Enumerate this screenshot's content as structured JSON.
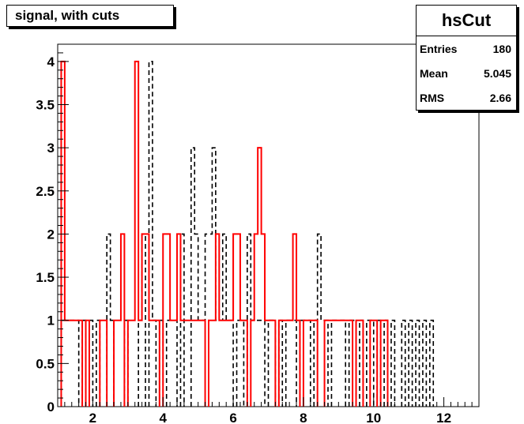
{
  "chart_data": {
    "type": "histogram",
    "title": "signal, with cuts",
    "xlim": [
      1,
      13
    ],
    "ylim": [
      0,
      4.2
    ],
    "x_ticks": [
      2,
      4,
      6,
      8,
      10,
      12
    ],
    "y_ticks": [
      0,
      0.5,
      1,
      1.5,
      2,
      2.5,
      3,
      3.5,
      4
    ],
    "x_tick_labels": [
      "2",
      "4",
      "6",
      "8",
      "10",
      "12"
    ],
    "y_tick_labels": [
      "0",
      "0.5",
      "1",
      "1.5",
      "2",
      "2.5",
      "3",
      "3.5",
      "4"
    ],
    "bin_width": 0.1,
    "series": [
      {
        "style": "solid",
        "color": "#ff0000",
        "bins": [
          [
            1.1,
            4
          ],
          [
            1.2,
            1
          ],
          [
            1.3,
            1
          ],
          [
            1.4,
            1
          ],
          [
            1.5,
            1
          ],
          [
            1.6,
            1
          ],
          [
            1.8,
            1
          ],
          [
            2.2,
            1
          ],
          [
            2.3,
            1
          ],
          [
            2.6,
            1
          ],
          [
            2.7,
            1
          ],
          [
            2.8,
            2
          ],
          [
            3.0,
            1
          ],
          [
            3.1,
            1
          ],
          [
            3.2,
            4
          ],
          [
            3.3,
            1
          ],
          [
            3.4,
            2
          ],
          [
            3.5,
            2
          ],
          [
            3.6,
            1
          ],
          [
            3.7,
            1
          ],
          [
            3.8,
            1
          ],
          [
            4.0,
            2
          ],
          [
            4.1,
            2
          ],
          [
            4.2,
            1
          ],
          [
            4.3,
            1
          ],
          [
            4.4,
            2
          ],
          [
            4.5,
            1
          ],
          [
            4.6,
            1
          ],
          [
            4.7,
            1
          ],
          [
            4.8,
            1
          ],
          [
            4.9,
            1
          ],
          [
            5.0,
            1
          ],
          [
            5.1,
            1
          ],
          [
            5.3,
            1
          ],
          [
            5.4,
            1
          ],
          [
            5.5,
            2
          ],
          [
            5.6,
            1
          ],
          [
            5.7,
            1
          ],
          [
            5.8,
            1
          ],
          [
            5.9,
            1
          ],
          [
            6.0,
            2
          ],
          [
            6.1,
            2
          ],
          [
            6.2,
            1
          ],
          [
            6.3,
            1
          ],
          [
            6.5,
            1
          ],
          [
            6.6,
            2
          ],
          [
            6.7,
            3
          ],
          [
            6.8,
            2
          ],
          [
            6.9,
            1
          ],
          [
            7.0,
            1
          ],
          [
            7.1,
            1
          ],
          [
            7.3,
            1
          ],
          [
            7.4,
            1
          ],
          [
            7.5,
            1
          ],
          [
            7.6,
            1
          ],
          [
            7.7,
            2
          ],
          [
            7.8,
            1
          ],
          [
            8.0,
            1
          ],
          [
            8.1,
            1
          ],
          [
            8.2,
            1
          ],
          [
            8.3,
            1
          ],
          [
            8.6,
            1
          ],
          [
            8.7,
            1
          ],
          [
            8.8,
            1
          ],
          [
            8.9,
            1
          ],
          [
            9.0,
            1
          ],
          [
            9.1,
            1
          ],
          [
            9.2,
            1
          ],
          [
            9.3,
            1
          ],
          [
            9.5,
            1
          ],
          [
            9.6,
            1
          ],
          [
            9.9,
            1
          ],
          [
            10.0,
            1
          ],
          [
            10.2,
            1
          ],
          [
            10.3,
            1
          ]
        ]
      },
      {
        "style": "dashed",
        "color": "#000000",
        "bins": [
          [
            1.1,
            1
          ],
          [
            1.2,
            1
          ],
          [
            1.3,
            1
          ],
          [
            1.4,
            1
          ],
          [
            1.5,
            1
          ],
          [
            1.7,
            1
          ],
          [
            1.9,
            1
          ],
          [
            2.1,
            1
          ],
          [
            2.4,
            2
          ],
          [
            2.5,
            1
          ],
          [
            2.9,
            1
          ],
          [
            3.3,
            1
          ],
          [
            3.4,
            2
          ],
          [
            3.6,
            4
          ],
          [
            3.7,
            1
          ],
          [
            3.9,
            1
          ],
          [
            4.1,
            1
          ],
          [
            4.2,
            1
          ],
          [
            4.3,
            1
          ],
          [
            4.5,
            2
          ],
          [
            4.8,
            3
          ],
          [
            4.9,
            2
          ],
          [
            5.0,
            1
          ],
          [
            5.1,
            1
          ],
          [
            5.2,
            2
          ],
          [
            5.3,
            2
          ],
          [
            5.4,
            3
          ],
          [
            5.5,
            1
          ],
          [
            5.6,
            1
          ],
          [
            5.7,
            2
          ],
          [
            5.8,
            1
          ],
          [
            5.9,
            1
          ],
          [
            6.1,
            1
          ],
          [
            6.2,
            1
          ],
          [
            6.4,
            2
          ],
          [
            6.5,
            1
          ],
          [
            6.6,
            1
          ],
          [
            6.7,
            1
          ],
          [
            6.8,
            1
          ],
          [
            7.0,
            1
          ],
          [
            7.1,
            1
          ],
          [
            7.3,
            1
          ],
          [
            7.5,
            1
          ],
          [
            7.6,
            1
          ],
          [
            7.7,
            1
          ],
          [
            7.9,
            1
          ],
          [
            8.0,
            1
          ],
          [
            8.1,
            1
          ],
          [
            8.3,
            1
          ],
          [
            8.4,
            2
          ],
          [
            8.5,
            1
          ],
          [
            8.6,
            1
          ],
          [
            8.8,
            1
          ],
          [
            8.9,
            1
          ],
          [
            9.0,
            1
          ],
          [
            9.1,
            1
          ],
          [
            9.3,
            1
          ],
          [
            9.4,
            1
          ],
          [
            9.6,
            1
          ],
          [
            9.8,
            1
          ],
          [
            9.9,
            1
          ],
          [
            10.1,
            1
          ],
          [
            10.3,
            1
          ],
          [
            10.5,
            1
          ],
          [
            10.8,
            1
          ],
          [
            11.0,
            1
          ],
          [
            11.2,
            1
          ],
          [
            11.4,
            1
          ],
          [
            11.6,
            1
          ]
        ]
      }
    ],
    "stats": {
      "name": "hsCut",
      "rows": [
        {
          "label": "Entries",
          "value": "180"
        },
        {
          "label": "Mean",
          "value": "5.045"
        },
        {
          "label": "RMS",
          "value": "2.66"
        }
      ]
    }
  }
}
